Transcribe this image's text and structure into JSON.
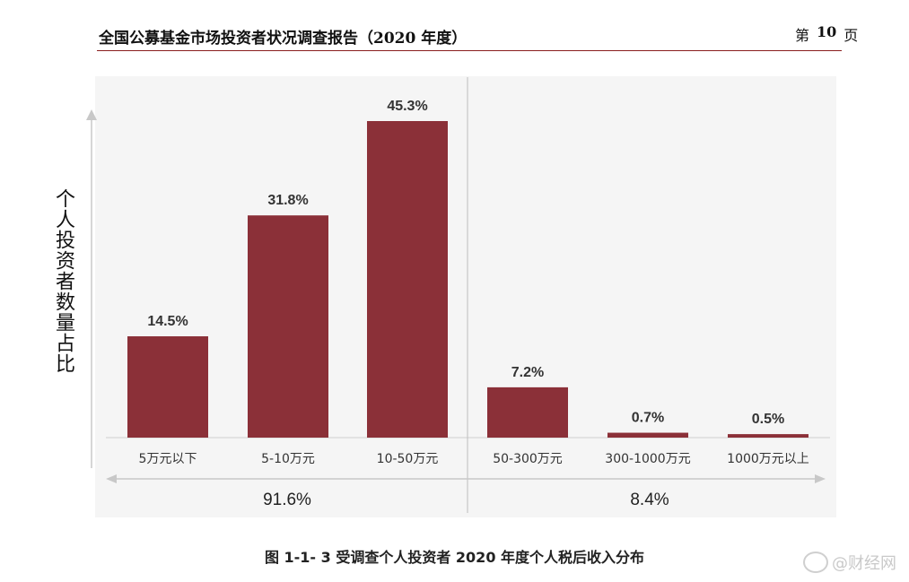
{
  "header": {
    "doc_title": "全国公募基金市场投资者状况调查报告（2020 年度）",
    "page_prefix": "第",
    "page_number": "10",
    "page_suffix": "页"
  },
  "chart_data": {
    "type": "bar",
    "title": "",
    "ylabel": "个人投资者数量占比",
    "categories": [
      "5万元以下",
      "5-10万元",
      "10-50万元",
      "50-300万元",
      "300-1000万元",
      "1000万元以上"
    ],
    "values": [
      14.5,
      31.8,
      45.3,
      7.2,
      0.7,
      0.5
    ],
    "value_labels": [
      "14.5%",
      "31.8%",
      "45.3%",
      "7.2%",
      "0.7%",
      "0.5%"
    ],
    "ylim": [
      0,
      50
    ],
    "grid": false,
    "bar_color": "#8b3038",
    "groups": [
      {
        "label": "91.6%",
        "categories": [
          "5万元以下",
          "5-10万元",
          "10-50万元"
        ]
      },
      {
        "label": "8.4%",
        "categories": [
          "50-300万元",
          "300-1000万元",
          "1000万元以上"
        ]
      }
    ]
  },
  "caption": "图 1-1- 3 受调查个人投资者 2020 年度个人税后收入分布",
  "watermark": {
    "text": "@财经网",
    "icon": "weibo-icon"
  }
}
